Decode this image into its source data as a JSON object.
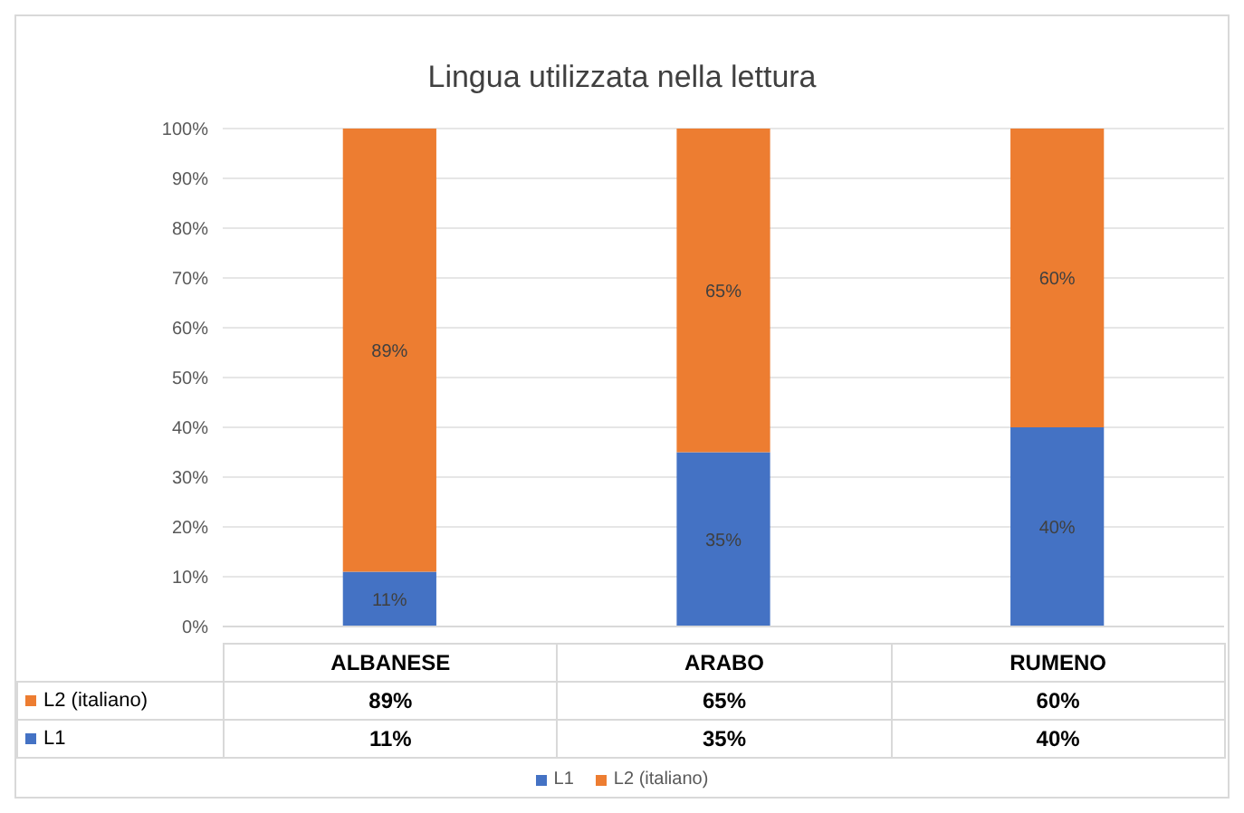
{
  "chart_data": {
    "type": "bar",
    "title": "Lingua utilizzata nella lettura",
    "categories": [
      "ALBANESE",
      "ARABO",
      "RUMENO"
    ],
    "stacked": true,
    "series": [
      {
        "name": "L1",
        "color": "#4472c4",
        "values": [
          11,
          35,
          40
        ],
        "value_labels": [
          "11%",
          "35%",
          "40%"
        ]
      },
      {
        "name": "L2 (italiano)",
        "color": "#ed7d31",
        "values": [
          89,
          65,
          60
        ],
        "value_labels": [
          "89%",
          "65%",
          "60%"
        ]
      }
    ],
    "ylim": [
      0,
      100
    ],
    "yticks": [
      {
        "value": 0,
        "label": "0%"
      },
      {
        "value": 10,
        "label": "10%"
      },
      {
        "value": 20,
        "label": "20%"
      },
      {
        "value": 30,
        "label": "30%"
      },
      {
        "value": 40,
        "label": "40%"
      },
      {
        "value": 50,
        "label": "50%"
      },
      {
        "value": 60,
        "label": "60%"
      },
      {
        "value": 70,
        "label": "70%"
      },
      {
        "value": 80,
        "label": "80%"
      },
      {
        "value": 90,
        "label": "90%"
      },
      {
        "value": 100,
        "label": "100%"
      }
    ],
    "grid": "y",
    "legend": "bottom"
  }
}
